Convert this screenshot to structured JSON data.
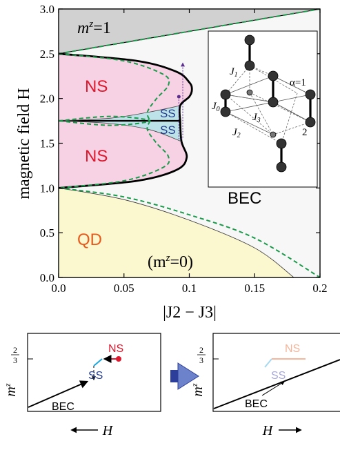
{
  "chart_data": [
    {
      "type": "area",
      "title": "",
      "xlabel": "|J2 − J3|",
      "ylabel": "magnetic field H",
      "xlim": [
        0,
        0.2
      ],
      "ylim": [
        0,
        3.0
      ],
      "x_ticks": [
        "0.0",
        "0.05",
        "0.1",
        "0.15",
        "0.2"
      ],
      "y_ticks": [
        "0.0",
        "0.5",
        "1.0",
        "1.5",
        "2.0",
        "2.5",
        "3.0"
      ],
      "phase_labels": {
        "saturated": "m",
        "saturated_sup": "z",
        "saturated_val": "=1",
        "ns_upper": "NS",
        "ns_lower": "NS",
        "ss_upper": "SS",
        "ss_lower": "SS",
        "bec": "BEC",
        "qd": "QD",
        "qd_sub_open": "(m",
        "qd_sub_sup": "z",
        "qd_sub_close": "=0)"
      },
      "phase_colors": {
        "saturated": "#d1d1d1",
        "ns": "#f7d2e4",
        "ss": "#bde3e8",
        "qd": "#fbf7cf",
        "bec": "#f7f7f7",
        "dashed_boundary": "#1a9a4a",
        "ns_label": "#e0182d",
        "ss_label": "#223a8f",
        "qd_label": "#e85a1b",
        "arrow": "#5b2d8e"
      },
      "boundaries": {
        "saturation_line": [
          [
            0,
            2.5
          ],
          [
            0.1,
            2.75
          ],
          [
            0.15,
            2.875
          ],
          [
            0.2,
            3.0
          ]
        ],
        "ns_outer_upper": [
          [
            0,
            2.5
          ],
          [
            0.06,
            2.42
          ],
          [
            0.09,
            2.3
          ],
          [
            0.1,
            2.18
          ],
          [
            0.102,
            2.1
          ],
          [
            0.1,
            2.02
          ],
          [
            0.093,
            1.92
          ],
          [
            0.093,
            1.75
          ]
        ],
        "ns_outer_lower": [
          [
            0,
            1.0
          ],
          [
            0.06,
            1.08
          ],
          [
            0.09,
            1.2
          ],
          [
            0.098,
            1.34
          ],
          [
            0.094,
            1.52
          ],
          [
            0.093,
            1.75
          ]
        ],
        "ss_ns_upper": [
          [
            0,
            1.75
          ],
          [
            0.04,
            1.78
          ],
          [
            0.07,
            1.85
          ],
          [
            0.093,
            1.92
          ]
        ],
        "ss_ns_lower": [
          [
            0,
            1.75
          ],
          [
            0.04,
            1.72
          ],
          [
            0.07,
            1.65
          ],
          [
            0.094,
            1.52
          ]
        ],
        "ss_midline": [
          [
            0,
            1.75
          ],
          [
            0.093,
            1.75
          ]
        ],
        "qd_boundary": [
          [
            0,
            1.0
          ],
          [
            0.05,
            0.87
          ],
          [
            0.1,
            0.64
          ],
          [
            0.15,
            0.33
          ],
          [
            0.18,
            0.0
          ]
        ],
        "dashed_ns_upper": [
          [
            0,
            2.5
          ],
          [
            0.05,
            2.42
          ],
          [
            0.08,
            2.27
          ],
          [
            0.084,
            2.15
          ],
          [
            0.075,
            2.0
          ],
          [
            0.068,
            1.85
          ],
          [
            0.07,
            1.75
          ]
        ],
        "dashed_ns_lower": [
          [
            0.07,
            1.75
          ],
          [
            0.068,
            1.65
          ],
          [
            0.075,
            1.5
          ],
          [
            0.084,
            1.35
          ],
          [
            0.08,
            1.23
          ],
          [
            0.05,
            1.08
          ],
          [
            0,
            1.0
          ]
        ],
        "dashed_ss": [
          [
            0,
            1.75
          ],
          [
            0.04,
            1.8
          ],
          [
            0.07,
            1.75
          ],
          [
            0.04,
            1.7
          ],
          [
            0,
            1.75
          ]
        ],
        "dashed_qd": [
          [
            0,
            1.0
          ],
          [
            0.05,
            0.9
          ],
          [
            0.1,
            0.7
          ],
          [
            0.15,
            0.44
          ],
          [
            0.2,
            0.0
          ]
        ]
      },
      "arrow_path": [
        [
          0.092,
          2.02
        ],
        [
          0.092,
          1.55
        ],
        [
          0.095,
          1.55
        ],
        [
          0.095,
          2.38
        ]
      ]
    },
    {
      "type": "line",
      "title": "",
      "xlabel": "H",
      "ylabel": "m",
      "ylabel_sup": "z",
      "ytick_num": "2",
      "ytick_den": "3",
      "xlabel_direction": "left",
      "labels": {
        "ns": "NS",
        "ss": "SS",
        "bec": "BEC"
      },
      "series": [
        {
          "name": "BEC",
          "points": [
            [
              0.0,
              0.0
            ],
            [
              0.45,
              0.24
            ]
          ]
        },
        {
          "name": "SS",
          "points": [
            [
              0.5,
              0.8
            ],
            [
              0.58,
              0.9
            ]
          ]
        },
        {
          "name": "NS",
          "points": [
            [
              0.58,
              0.9
            ],
            [
              0.9,
              0.9
            ]
          ]
        }
      ]
    },
    {
      "type": "line",
      "title": "",
      "xlabel": "H",
      "ylabel": "m",
      "ylabel_sup": "z",
      "ytick_num": "2",
      "ytick_den": "3",
      "xlabel_direction": "right",
      "labels": {
        "ns": "NS",
        "ss": "SS",
        "bec": "BEC"
      },
      "series": [
        {
          "name": "BEC",
          "points": [
            [
              0.0,
              0.0
            ],
            [
              1.0,
              0.97
            ]
          ]
        },
        {
          "name": "SS",
          "points": [
            [
              0.48,
              0.8
            ],
            [
              0.56,
              0.9
            ]
          ]
        },
        {
          "name": "NS",
          "points": [
            [
              0.56,
              0.9
            ],
            [
              0.9,
              0.9
            ]
          ]
        }
      ]
    }
  ],
  "inset": {
    "labels": {
      "j1": "J",
      "j1_sub": "1",
      "j0": "J",
      "j0_sub": "0",
      "j3": "J",
      "j3_sub": "3",
      "j2": "J",
      "j2_sub": "2",
      "alpha": "α=1",
      "two": "2"
    }
  }
}
